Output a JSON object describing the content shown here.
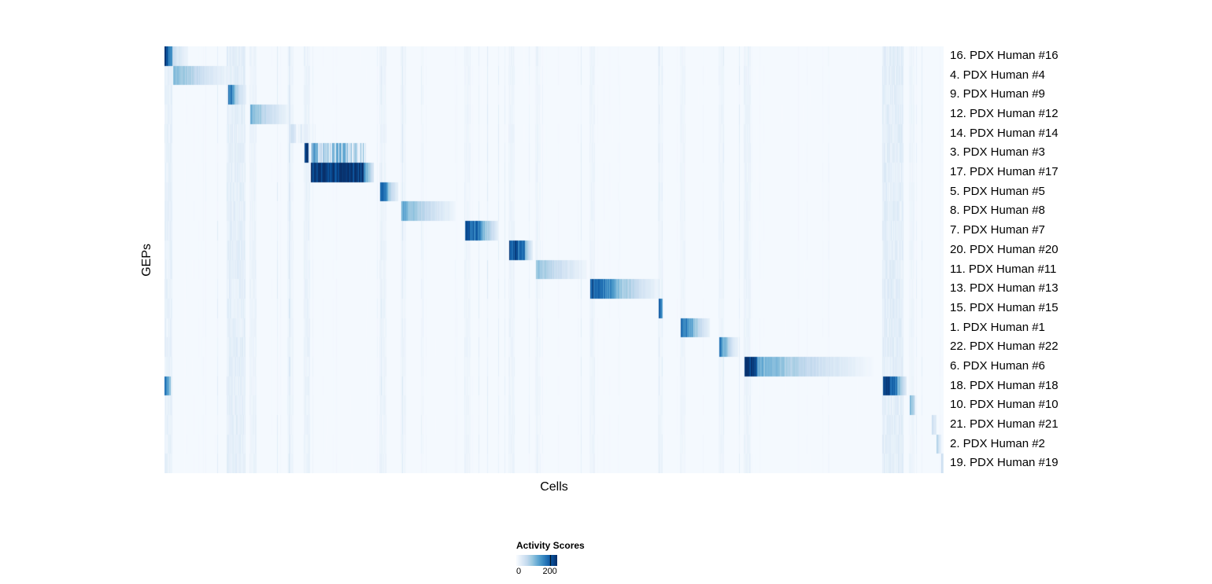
{
  "figure": {
    "background": "#ffffff"
  },
  "chart_data": {
    "type": "heatmap",
    "title": "",
    "xlabel": "Cells",
    "ylabel": "GEPs",
    "x_tick_labels_visible": false,
    "value_range": [
      0,
      250
    ],
    "legend": {
      "title": "Activity Scores",
      "ticks": [
        {
          "label": "0",
          "pos": 0.06
        },
        {
          "label": "200",
          "pos": 0.82
        }
      ],
      "tick_line_pos": 0.82
    },
    "colors": {
      "scale": [
        "#f7fbff",
        "#deebf7",
        "#c6dbef",
        "#9ecae1",
        "#6baed6",
        "#4292c6",
        "#2171b5",
        "#08519c",
        "#08306b"
      ],
      "background": "#ffffff"
    },
    "rows": [
      {
        "label": "16. PDX Human #16",
        "blocks": [
          {
            "s": 0.0,
            "e": 0.01,
            "v0": 0.95,
            "v1": 0.6
          },
          {
            "s": 0.01,
            "e": 0.03,
            "v0": 0.25,
            "v1": 0.05
          }
        ]
      },
      {
        "label": "4. PDX Human #4",
        "blocks": [
          {
            "s": 0.011,
            "e": 0.084,
            "v0": 0.5,
            "v1": 0.04
          }
        ]
      },
      {
        "label": "9. PDX Human #9",
        "blocks": [
          {
            "s": 0.081,
            "e": 0.09,
            "v0": 0.9,
            "v1": 0.5
          },
          {
            "s": 0.09,
            "e": 0.105,
            "v0": 0.4,
            "v1": 0.05
          }
        ]
      },
      {
        "label": "12. PDX Human #12",
        "blocks": [
          {
            "s": 0.11,
            "e": 0.16,
            "v0": 0.5,
            "v1": 0.04
          }
        ]
      },
      {
        "label": "14. PDX Human #14",
        "blocks": [
          {
            "s": 0.158,
            "e": 0.195,
            "v0": 0.24,
            "v1": 0.04,
            "striped": true
          }
        ]
      },
      {
        "label": "3. PDX Human #3",
        "blocks": [
          {
            "s": 0.179,
            "e": 0.184,
            "v0": 1.0,
            "v1": 1.0
          },
          {
            "s": 0.187,
            "e": 0.258,
            "v0": 0.7,
            "v1": 0.3,
            "striped": true
          }
        ]
      },
      {
        "label": "17. PDX Human #17",
        "blocks": [
          {
            "s": 0.187,
            "e": 0.255,
            "v0": 1.0,
            "v1": 0.95
          },
          {
            "s": 0.255,
            "e": 0.268,
            "v0": 0.7,
            "v1": 0.15
          }
        ]
      },
      {
        "label": "5. PDX Human #5",
        "blocks": [
          {
            "s": 0.276,
            "e": 0.286,
            "v0": 0.9,
            "v1": 0.6
          },
          {
            "s": 0.286,
            "e": 0.3,
            "v0": 0.4,
            "v1": 0.08
          }
        ]
      },
      {
        "label": "8. PDX Human #8",
        "blocks": [
          {
            "s": 0.304,
            "e": 0.372,
            "v0": 0.55,
            "v1": 0.05
          }
        ]
      },
      {
        "label": "7. PDX Human #7",
        "blocks": [
          {
            "s": 0.385,
            "e": 0.405,
            "v0": 0.9,
            "v1": 0.72
          },
          {
            "s": 0.405,
            "e": 0.428,
            "v0": 0.6,
            "v1": 0.08
          }
        ]
      },
      {
        "label": "20. PDX Human #20",
        "blocks": [
          {
            "s": 0.442,
            "e": 0.462,
            "v0": 0.95,
            "v1": 0.7
          },
          {
            "s": 0.462,
            "e": 0.472,
            "v0": 0.5,
            "v1": 0.1
          }
        ]
      },
      {
        "label": "11. PDX Human #11",
        "blocks": [
          {
            "s": 0.476,
            "e": 0.542,
            "v0": 0.45,
            "v1": 0.04
          }
        ]
      },
      {
        "label": "13. PDX Human #13",
        "blocks": [
          {
            "s": 0.546,
            "e": 0.575,
            "v0": 0.9,
            "v1": 0.6
          },
          {
            "s": 0.575,
            "e": 0.633,
            "v0": 0.55,
            "v1": 0.05
          }
        ]
      },
      {
        "label": "15. PDX Human #15",
        "blocks": [
          {
            "s": 0.634,
            "e": 0.639,
            "v0": 0.9,
            "v1": 0.6
          }
        ]
      },
      {
        "label": "1. PDX Human #1",
        "blocks": [
          {
            "s": 0.662,
            "e": 0.678,
            "v0": 0.85,
            "v1": 0.5
          },
          {
            "s": 0.678,
            "e": 0.7,
            "v0": 0.45,
            "v1": 0.07
          }
        ]
      },
      {
        "label": "22. PDX Human #22",
        "blocks": [
          {
            "s": 0.712,
            "e": 0.722,
            "v0": 0.75,
            "v1": 0.4
          },
          {
            "s": 0.722,
            "e": 0.736,
            "v0": 0.35,
            "v1": 0.06
          }
        ]
      },
      {
        "label": "6. PDX Human #6",
        "blocks": [
          {
            "s": 0.744,
            "e": 0.76,
            "v0": 1.0,
            "v1": 0.95
          },
          {
            "s": 0.76,
            "e": 0.91,
            "v0": 0.55,
            "v1": 0.02
          }
        ]
      },
      {
        "label": "18. PDX Human #18",
        "blocks": [
          {
            "s": 0.0,
            "e": 0.008,
            "v0": 0.7,
            "v1": 0.4
          },
          {
            "s": 0.922,
            "e": 0.94,
            "v0": 1.0,
            "v1": 0.8
          },
          {
            "s": 0.94,
            "e": 0.952,
            "v0": 0.6,
            "v1": 0.1
          }
        ]
      },
      {
        "label": "10. PDX Human #10",
        "blocks": [
          {
            "s": 0.956,
            "e": 0.963,
            "v0": 0.55,
            "v1": 0.2
          }
        ]
      },
      {
        "label": "21. PDX Human #21",
        "blocks": [
          {
            "s": 0.984,
            "e": 0.99,
            "v0": 0.3,
            "v1": 0.1
          }
        ]
      },
      {
        "label": "2. PDX Human #2",
        "blocks": [
          {
            "s": 0.99,
            "e": 0.996,
            "v0": 0.35,
            "v1": 0.1
          }
        ]
      },
      {
        "label": "19. PDX Human #19",
        "blocks": [
          {
            "s": 0.996,
            "e": 1.0,
            "v0": 0.3,
            "v1": 0.1
          }
        ]
      }
    ],
    "bands": [
      {
        "s": 0.0,
        "e": 0.01,
        "a": 0.1
      },
      {
        "s": 0.08,
        "e": 0.104,
        "a": 0.12
      },
      {
        "s": 0.11,
        "e": 0.118,
        "a": 0.06
      },
      {
        "s": 0.158,
        "e": 0.165,
        "a": 0.05
      },
      {
        "s": 0.179,
        "e": 0.186,
        "a": 0.08
      },
      {
        "s": 0.276,
        "e": 0.284,
        "a": 0.06
      },
      {
        "s": 0.304,
        "e": 0.31,
        "a": 0.05
      },
      {
        "s": 0.385,
        "e": 0.392,
        "a": 0.05
      },
      {
        "s": 0.442,
        "e": 0.449,
        "a": 0.06
      },
      {
        "s": 0.476,
        "e": 0.482,
        "a": 0.04
      },
      {
        "s": 0.546,
        "e": 0.552,
        "a": 0.06
      },
      {
        "s": 0.634,
        "e": 0.639,
        "a": 0.05
      },
      {
        "s": 0.662,
        "e": 0.668,
        "a": 0.05
      },
      {
        "s": 0.712,
        "e": 0.718,
        "a": 0.05
      },
      {
        "s": 0.744,
        "e": 0.752,
        "a": 0.07
      },
      {
        "s": 0.922,
        "e": 0.948,
        "a": 0.13
      },
      {
        "s": 0.956,
        "e": 0.962,
        "a": 0.05
      }
    ]
  }
}
